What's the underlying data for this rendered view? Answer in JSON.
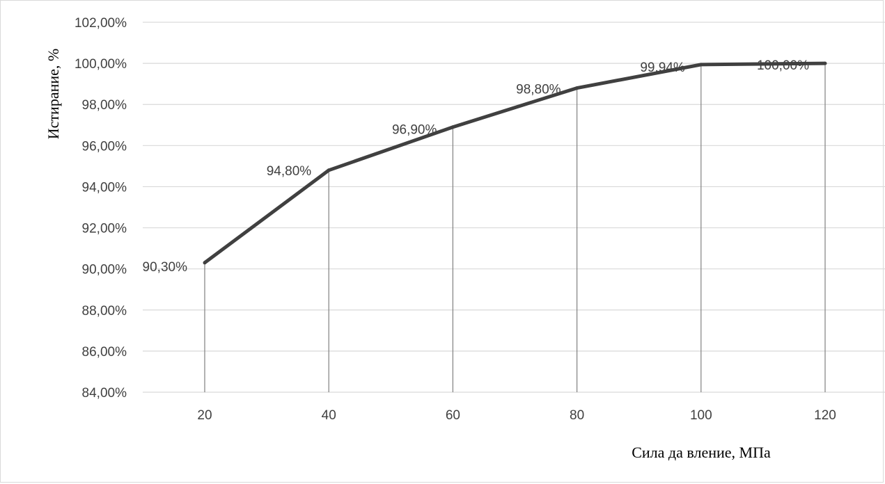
{
  "chart_data": {
    "type": "line",
    "title": "",
    "xlabel": "Сила да вление, МПа",
    "ylabel": "Истирание, %",
    "x": [
      20,
      40,
      60,
      80,
      100,
      120
    ],
    "y": [
      90.3,
      94.8,
      96.9,
      98.8,
      99.94,
      100.0
    ],
    "data_labels": [
      "90,30%",
      "94,80%",
      "96,90%",
      "98,80%",
      "99,94%",
      "100,00%"
    ],
    "x_tick_labels": [
      "20",
      "40",
      "60",
      "80",
      "100",
      "120"
    ],
    "y_ticks": [
      84,
      86,
      88,
      90,
      92,
      94,
      96,
      98,
      100,
      102
    ],
    "y_tick_labels": [
      "84,00%",
      "86,00%",
      "88,00%",
      "90,00%",
      "92,00%",
      "94,00%",
      "96,00%",
      "98,00%",
      "100,00%",
      "102,00%"
    ],
    "ylim": [
      84,
      102
    ],
    "grid": true,
    "drop_lines": true,
    "legend": "none",
    "colors": {
      "line": "#404040",
      "grid": "#d9d9d9",
      "drop_line": "#808080",
      "text": "#404040"
    }
  }
}
